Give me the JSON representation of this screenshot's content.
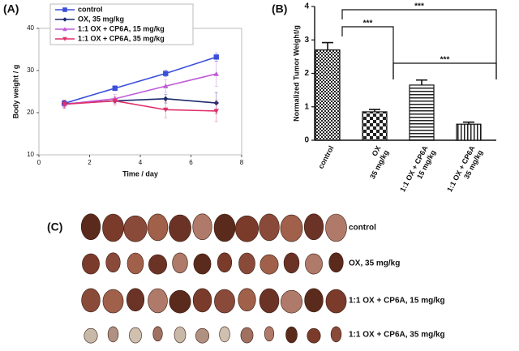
{
  "chart_data": [
    {
      "type": "line",
      "panel": "(A)",
      "xlabel": "Time / day",
      "ylabel": "Body weight / g",
      "x": [
        1,
        3,
        5,
        7
      ],
      "xlim": [
        0,
        8
      ],
      "xticks": [
        0,
        2,
        4,
        6,
        8
      ],
      "ylim": [
        10,
        40
      ],
      "yticks": [
        10,
        20,
        30,
        40
      ],
      "legend": "upper left",
      "series": [
        {
          "name": "control",
          "color": "#3b4fd8",
          "marker": "square",
          "values": [
            22.2,
            25.8,
            29.3,
            33.2
          ],
          "errors": [
            0.8,
            0.6,
            0.8,
            1.0
          ]
        },
        {
          "name": "OX, 35 mg/kg",
          "color": "#1c2a6e",
          "marker": "diamond",
          "values": [
            22.1,
            22.8,
            23.3,
            22.3
          ],
          "errors": [
            0.8,
            0.5,
            1.0,
            2.5
          ]
        },
        {
          "name": "1:1 OX + CP6A, 15 mg/kg",
          "color": "#c05ad8",
          "marker": "triangle-up",
          "values": [
            22.0,
            23.3,
            26.3,
            29.2
          ],
          "errors": [
            1.0,
            1.0,
            1.5,
            3.0
          ]
        },
        {
          "name": "1:1 OX + CP6A, 35 mg/kg",
          "color": "#e0306a",
          "marker": "triangle-down",
          "values": [
            22.0,
            22.8,
            20.7,
            20.4
          ],
          "errors": [
            1.0,
            1.0,
            2.0,
            2.5
          ]
        }
      ]
    },
    {
      "type": "bar",
      "panel": "(B)",
      "ylabel": "Normalized Tumor Weight/g",
      "categories": [
        "control",
        "OX\n35 mg/kg",
        "1:1 OX + CP6A\n15 mg/kg",
        "1:1 OX + CP6A\n35 mg/kg"
      ],
      "values": [
        2.7,
        0.85,
        1.65,
        0.48
      ],
      "errors": [
        0.22,
        0.07,
        0.15,
        0.06
      ],
      "patterns": [
        "fine-check",
        "check",
        "horizontal",
        "vertical"
      ],
      "ylim": [
        0,
        4
      ],
      "yticks": [
        0,
        1,
        2,
        3,
        4
      ],
      "significance": [
        {
          "pair": [
            0,
            3
          ],
          "label": "***"
        },
        {
          "pair": [
            0,
            1
          ],
          "label": "***"
        },
        {
          "pair": [
            1,
            3
          ],
          "label": "***"
        }
      ]
    }
  ],
  "panel_c": {
    "label": "(C)",
    "rows": [
      "control",
      "OX, 35 mg/kg",
      "1:1 OX + CP6A, 15 mg/kg",
      "1:1 OX + CP6A, 35 mg/kg"
    ]
  }
}
